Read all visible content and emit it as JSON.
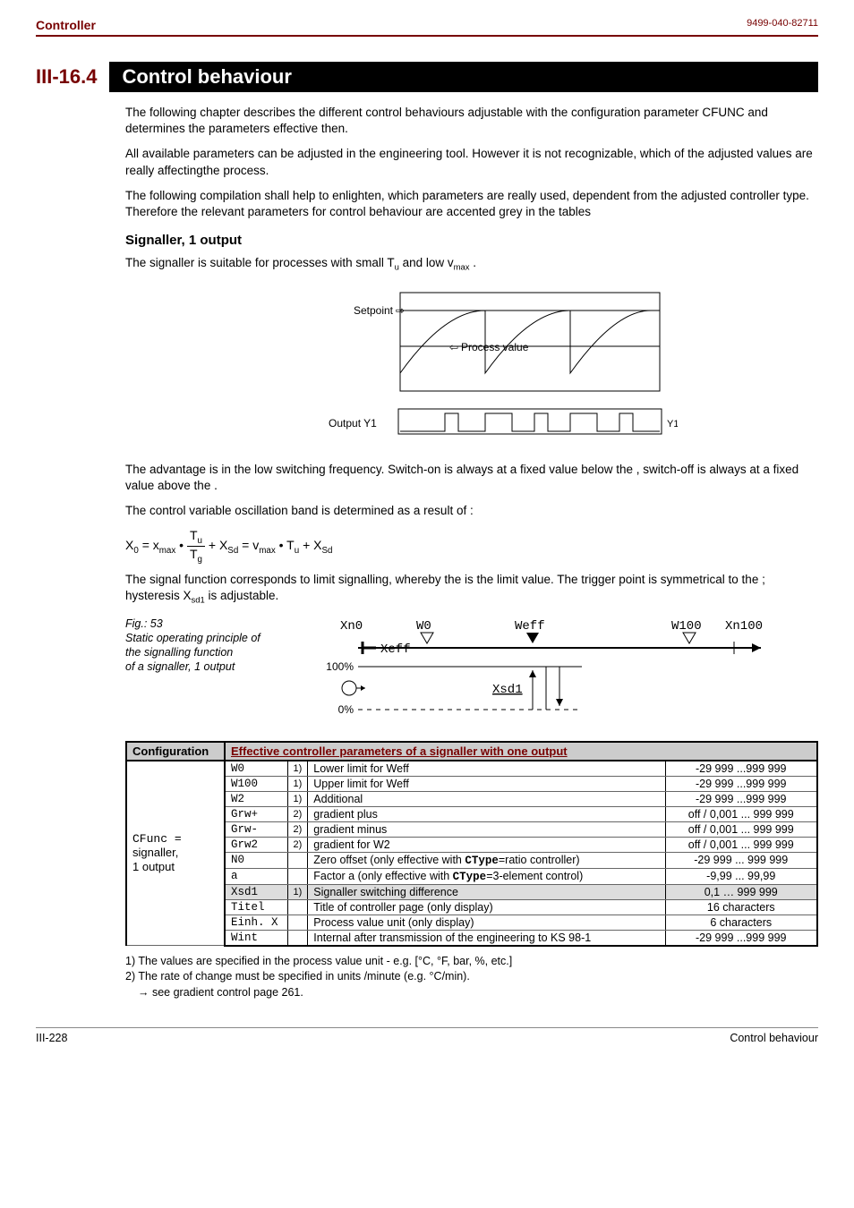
{
  "header": {
    "left": "Controller",
    "right": "9499-040-82711"
  },
  "section": {
    "number": "III-16.4",
    "title": "Control behaviour"
  },
  "paras": {
    "p1": "The following chapter describes the different control behaviours adjustable with the configuration parameter CFUNC and determines the parameters effective then.",
    "p2": "All available parameters can be adjusted in the engineering tool. However it is not recognizable, which of the adjusted values are really affectingthe process.",
    "p3": "The following compilation shall help to enlighten, which parameters are really used, dependent from the adjusted controller type. Therefore the relevant parameters for control behaviour are accented grey in the tables"
  },
  "subhead1": "Signaller, 1 output",
  "sig_intro_a": "The signaller is suitable for processes with small T",
  "sig_intro_b": " and low v",
  "sig_intro_c": " .",
  "diagram1": {
    "setpoint": "Setpoint",
    "process": "Process value",
    "output": "Output Y1",
    "y1": "Y1"
  },
  "adv_para": "The advantage is in the low switching frequency. Switch-on is always at a fixed value below the , switch-off is always at a fixed value above the .",
  "osc_para": "The control variable oscillation band is determined as a result of :",
  "formula_parts": {
    "x0": "X",
    "eq1": " = x",
    "dot1": " • ",
    "frac_top": "T",
    "frac_bot": "T",
    "plus1": " + X",
    "eq2": "  =  v",
    "dot2": " • T",
    "plus2": " + X"
  },
  "signal_para_a": "The signal function corresponds to limit signalling, whereby the  is the limit value. The trigger point is symmetrical to the ; hysteresis X",
  "signal_para_b": " is adjustable.",
  "fig53": {
    "num": "Fig.: 53",
    "l1": "Static operating principle of",
    "l2": "the signalling function",
    "l3": "of a signaller, 1 output",
    "labels": {
      "xn0": "Xn0",
      "w0": "W0",
      "weff": "Weff",
      "w100": "W100",
      "xn100": "Xn100",
      "xeff": "Xeff",
      "xsd1": "Xsd1",
      "p100": "100%",
      "p0": "0%"
    }
  },
  "table": {
    "h1": "Configuration",
    "h2": "Effective controller parameters of a signaller with one output",
    "cfg_a": "CFunc",
    "cfg_b": "signaller,",
    "cfg_c": "1 output",
    "rows": [
      {
        "code": "W0",
        "n": "1)",
        "desc": "Lower  limit for Weff",
        "range": "-29 999 ...999 999",
        "grey": false
      },
      {
        "code": "W100",
        "n": "1)",
        "desc": "Upper  limit for Weff",
        "range": "-29 999 ...999 999",
        "grey": false
      },
      {
        "code": "W2",
        "n": "1)",
        "desc": "Additional",
        "range": "-29 999 ...999 999",
        "grey": false
      },
      {
        "code": "Grw+",
        "n": "2)",
        "desc": "gradient plus",
        "range": "off / 0,001 ... 999 999",
        "grey": false
      },
      {
        "code": "Grw-",
        "n": "2)",
        "desc": "gradient minus",
        "range": "off / 0,001 ... 999 999",
        "grey": false
      },
      {
        "code": "Grw2",
        "n": "2)",
        "desc": "gradient for W2",
        "range": "off / 0,001 ... 999 999",
        "grey": false
      },
      {
        "code": "N0",
        "n": "",
        "desc": "Zero offset (only effective with CType=ratio controller)",
        "range": "-29 999 ... 999 999",
        "grey": false
      },
      {
        "code": "a",
        "n": "",
        "desc": "Factor a (only effective with CType=3-element control)",
        "range": "-9,99 ... 99,99",
        "grey": false
      },
      {
        "code": "Xsd1",
        "n": "1)",
        "desc": "Signaller switching difference",
        "range": "0,1 … 999 999",
        "grey": true
      },
      {
        "code": "Titel",
        "n": "",
        "desc": "Title of controller page (only display)",
        "range": "16 characters",
        "grey": false
      },
      {
        "code": "Einh. X",
        "n": "",
        "desc": "Process value unit (only display)",
        "range": "6 characters",
        "grey": false
      },
      {
        "code": "Wint",
        "n": "",
        "desc": "Internal  after transmission of the engineering to KS 98-1",
        "range": "-29 999 ...999 999",
        "grey": false
      }
    ]
  },
  "footnotes": {
    "f1": "1) The values are specified in the process value unit - e.g. [°C, °F, bar, %, etc.]",
    "f2": "2) The rate of change must be specified in units /minute (e.g. °C/min).",
    "f3": "→ see gradient control page 261."
  },
  "footer": {
    "left": "III-228",
    "right": "Control behaviour"
  }
}
